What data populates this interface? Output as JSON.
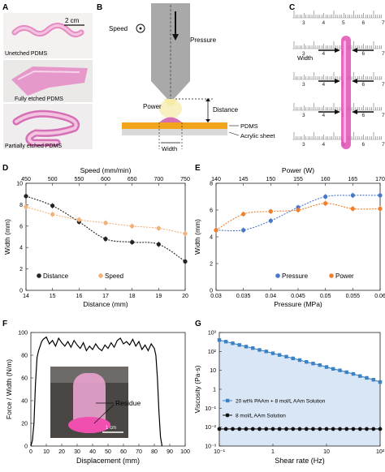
{
  "panels": {
    "A": {
      "label": "A",
      "scale_bar": "2 cm",
      "captions": [
        "Unetched PDMS",
        "Fully etched PDMS",
        "Partially etched PDMS"
      ],
      "colors": {
        "pdms": "#e68ac4",
        "pdms_light": "#f3c3e0"
      }
    },
    "B": {
      "label": "B",
      "speed": "Speed",
      "pressure": "Pressure",
      "power": "Power",
      "distance": "Distance",
      "pdms": "PDMS",
      "acrylic": "Acrylic sheet",
      "width": "Width",
      "colors": {
        "nozzle": "#a9a9a9",
        "pdms_layer": "#f2a51a",
        "acrylic": "#d9d9d9",
        "plasma": "#f6e9a6",
        "bead": "#d670b6"
      }
    },
    "C": {
      "label": "C",
      "ruler_numbers": [
        "3",
        "4",
        "5",
        "6",
        "7"
      ],
      "width": "Width",
      "colors": {
        "line": "#e24fb5",
        "arrow": "#111111"
      }
    },
    "D": {
      "label": "D"
    },
    "E": {
      "label": "E"
    },
    "F": {
      "label": "F",
      "residue": "Residue",
      "scale": "1 cm"
    },
    "G": {
      "label": "G"
    }
  },
  "chart_data": [
    {
      "panel": "D",
      "type": "line",
      "xlabel": "Distance (mm)",
      "ylabel": "Width (mm)",
      "x2label": "Speed (mm/min)",
      "xlim": [
        14,
        20
      ],
      "x2lim": [
        450,
        750
      ],
      "ylim": [
        0,
        10
      ],
      "xticks": [
        14,
        15,
        16,
        17,
        18,
        19,
        20
      ],
      "x2ticks": [
        450,
        500,
        550,
        600,
        650,
        700,
        750
      ],
      "yticks": [
        0,
        2,
        4,
        6,
        8,
        10
      ],
      "legend_position": "bottom-left",
      "series": [
        {
          "name": "Distance",
          "axis": "bottom",
          "color": "#222222",
          "x": [
            14,
            15,
            16,
            17,
            18,
            19,
            20
          ],
          "y": [
            8.8,
            7.9,
            6.4,
            4.8,
            4.5,
            4.3,
            2.7
          ]
        },
        {
          "name": "Speed",
          "axis": "top",
          "color": "#f0b27a",
          "x": [
            450,
            500,
            550,
            600,
            650,
            700,
            750
          ],
          "y": [
            7.8,
            7.1,
            6.6,
            6.3,
            6.0,
            5.8,
            5.3
          ]
        }
      ]
    },
    {
      "panel": "E",
      "type": "line",
      "xlabel": "Pressure (MPa)",
      "ylabel": "Width (mm)",
      "x2label": "Power (W)",
      "xlim": [
        0.03,
        0.06
      ],
      "x2lim": [
        140,
        170
      ],
      "ylim": [
        0,
        8
      ],
      "xticks": [
        "0.03",
        "0.035",
        "0.04",
        "0.045",
        "0.05",
        "0.055",
        "0.06"
      ],
      "x2ticks": [
        140,
        145,
        150,
        155,
        160,
        165,
        170
      ],
      "yticks": [
        0,
        2,
        4,
        6,
        8
      ],
      "legend_position": "bottom",
      "series": [
        {
          "name": "Pressure",
          "axis": "bottom",
          "color": "#4a78c8",
          "x": [
            0.03,
            0.035,
            0.04,
            0.045,
            0.05,
            0.055,
            0.06
          ],
          "y": [
            4.5,
            4.5,
            5.2,
            6.2,
            7.0,
            7.1,
            7.1
          ]
        },
        {
          "name": "Power",
          "axis": "top",
          "color": "#ef7f2a",
          "x": [
            140,
            145,
            150,
            155,
            160,
            165,
            170
          ],
          "y": [
            4.5,
            5.7,
            5.9,
            6.0,
            6.5,
            6.1,
            6.1
          ]
        }
      ]
    },
    {
      "panel": "F",
      "type": "line",
      "xlabel": "Displacement (mm)",
      "ylabel": "Force / Width (N/m)",
      "xlim": [
        0,
        100
      ],
      "ylim": [
        0,
        100
      ],
      "xticks": [
        0,
        10,
        20,
        30,
        40,
        50,
        60,
        70,
        80,
        90,
        100
      ],
      "yticks": [
        0,
        20,
        40,
        60,
        80,
        100
      ],
      "series": [
        {
          "name": "",
          "color": "#000000",
          "x": [
            0,
            1,
            2,
            3,
            4,
            5,
            6,
            7,
            8,
            10,
            12,
            14,
            16,
            18,
            20,
            22,
            24,
            26,
            28,
            30,
            32,
            34,
            36,
            38,
            40,
            42,
            44,
            46,
            48,
            50,
            52,
            54,
            56,
            58,
            60,
            62,
            64,
            66,
            68,
            70,
            72,
            74,
            76,
            78,
            80,
            81,
            82,
            83,
            84,
            85
          ],
          "y": [
            0,
            5,
            20,
            55,
            78,
            84,
            88,
            92,
            94,
            96,
            90,
            93,
            88,
            95,
            91,
            88,
            92,
            87,
            93,
            89,
            86,
            91,
            84,
            88,
            85,
            90,
            86,
            84,
            89,
            86,
            91,
            87,
            93,
            95,
            90,
            92,
            89,
            94,
            88,
            92,
            85,
            89,
            84,
            90,
            86,
            80,
            60,
            30,
            8,
            0
          ]
        }
      ]
    },
    {
      "panel": "G",
      "type": "line",
      "xlabel": "Shear rate (Hz)",
      "ylabel": "Viscosity (Pa·s)",
      "xscale": "log",
      "yscale": "log",
      "xlim": [
        0.1,
        100
      ],
      "ylim": [
        0.001,
        1000
      ],
      "xticks": [
        "10⁻¹",
        "1",
        "10",
        "10²"
      ],
      "yticks": [
        "10⁻³",
        "10⁻²",
        "10⁻¹",
        "1",
        "10",
        "10²",
        "10³"
      ],
      "legend_position": "bottom",
      "series": [
        {
          "name": "20 wt% PAAm + 8 mol/L AAm Solution",
          "color": "#3b82c4",
          "x": [
            0.1,
            0.133,
            0.178,
            0.237,
            0.316,
            0.422,
            0.562,
            0.75,
            1.0,
            1.33,
            1.78,
            2.37,
            3.16,
            4.22,
            5.62,
            7.5,
            10,
            13.3,
            17.8,
            23.7,
            31.6,
            42.2,
            56.2,
            75,
            100
          ],
          "y": [
            400,
            330,
            270,
            220,
            180,
            150,
            120,
            100,
            80,
            65,
            53,
            43,
            35,
            28,
            23,
            19,
            15,
            12,
            10,
            8,
            6.5,
            5,
            4,
            3.2,
            2.4
          ]
        },
        {
          "name": "8 mol/L AAm Solution",
          "color": "#111111",
          "x": [
            0.1,
            0.133,
            0.178,
            0.237,
            0.316,
            0.422,
            0.562,
            0.75,
            1.0,
            1.33,
            1.78,
            2.37,
            3.16,
            4.22,
            5.62,
            7.5,
            10,
            13.3,
            17.8,
            23.7,
            31.6,
            42.2,
            56.2,
            75,
            100
          ],
          "y": [
            0.008,
            0.008,
            0.008,
            0.008,
            0.008,
            0.008,
            0.008,
            0.008,
            0.008,
            0.008,
            0.008,
            0.008,
            0.008,
            0.008,
            0.008,
            0.008,
            0.008,
            0.008,
            0.008,
            0.008,
            0.008,
            0.008,
            0.008,
            0.008,
            0.008
          ]
        }
      ]
    }
  ]
}
